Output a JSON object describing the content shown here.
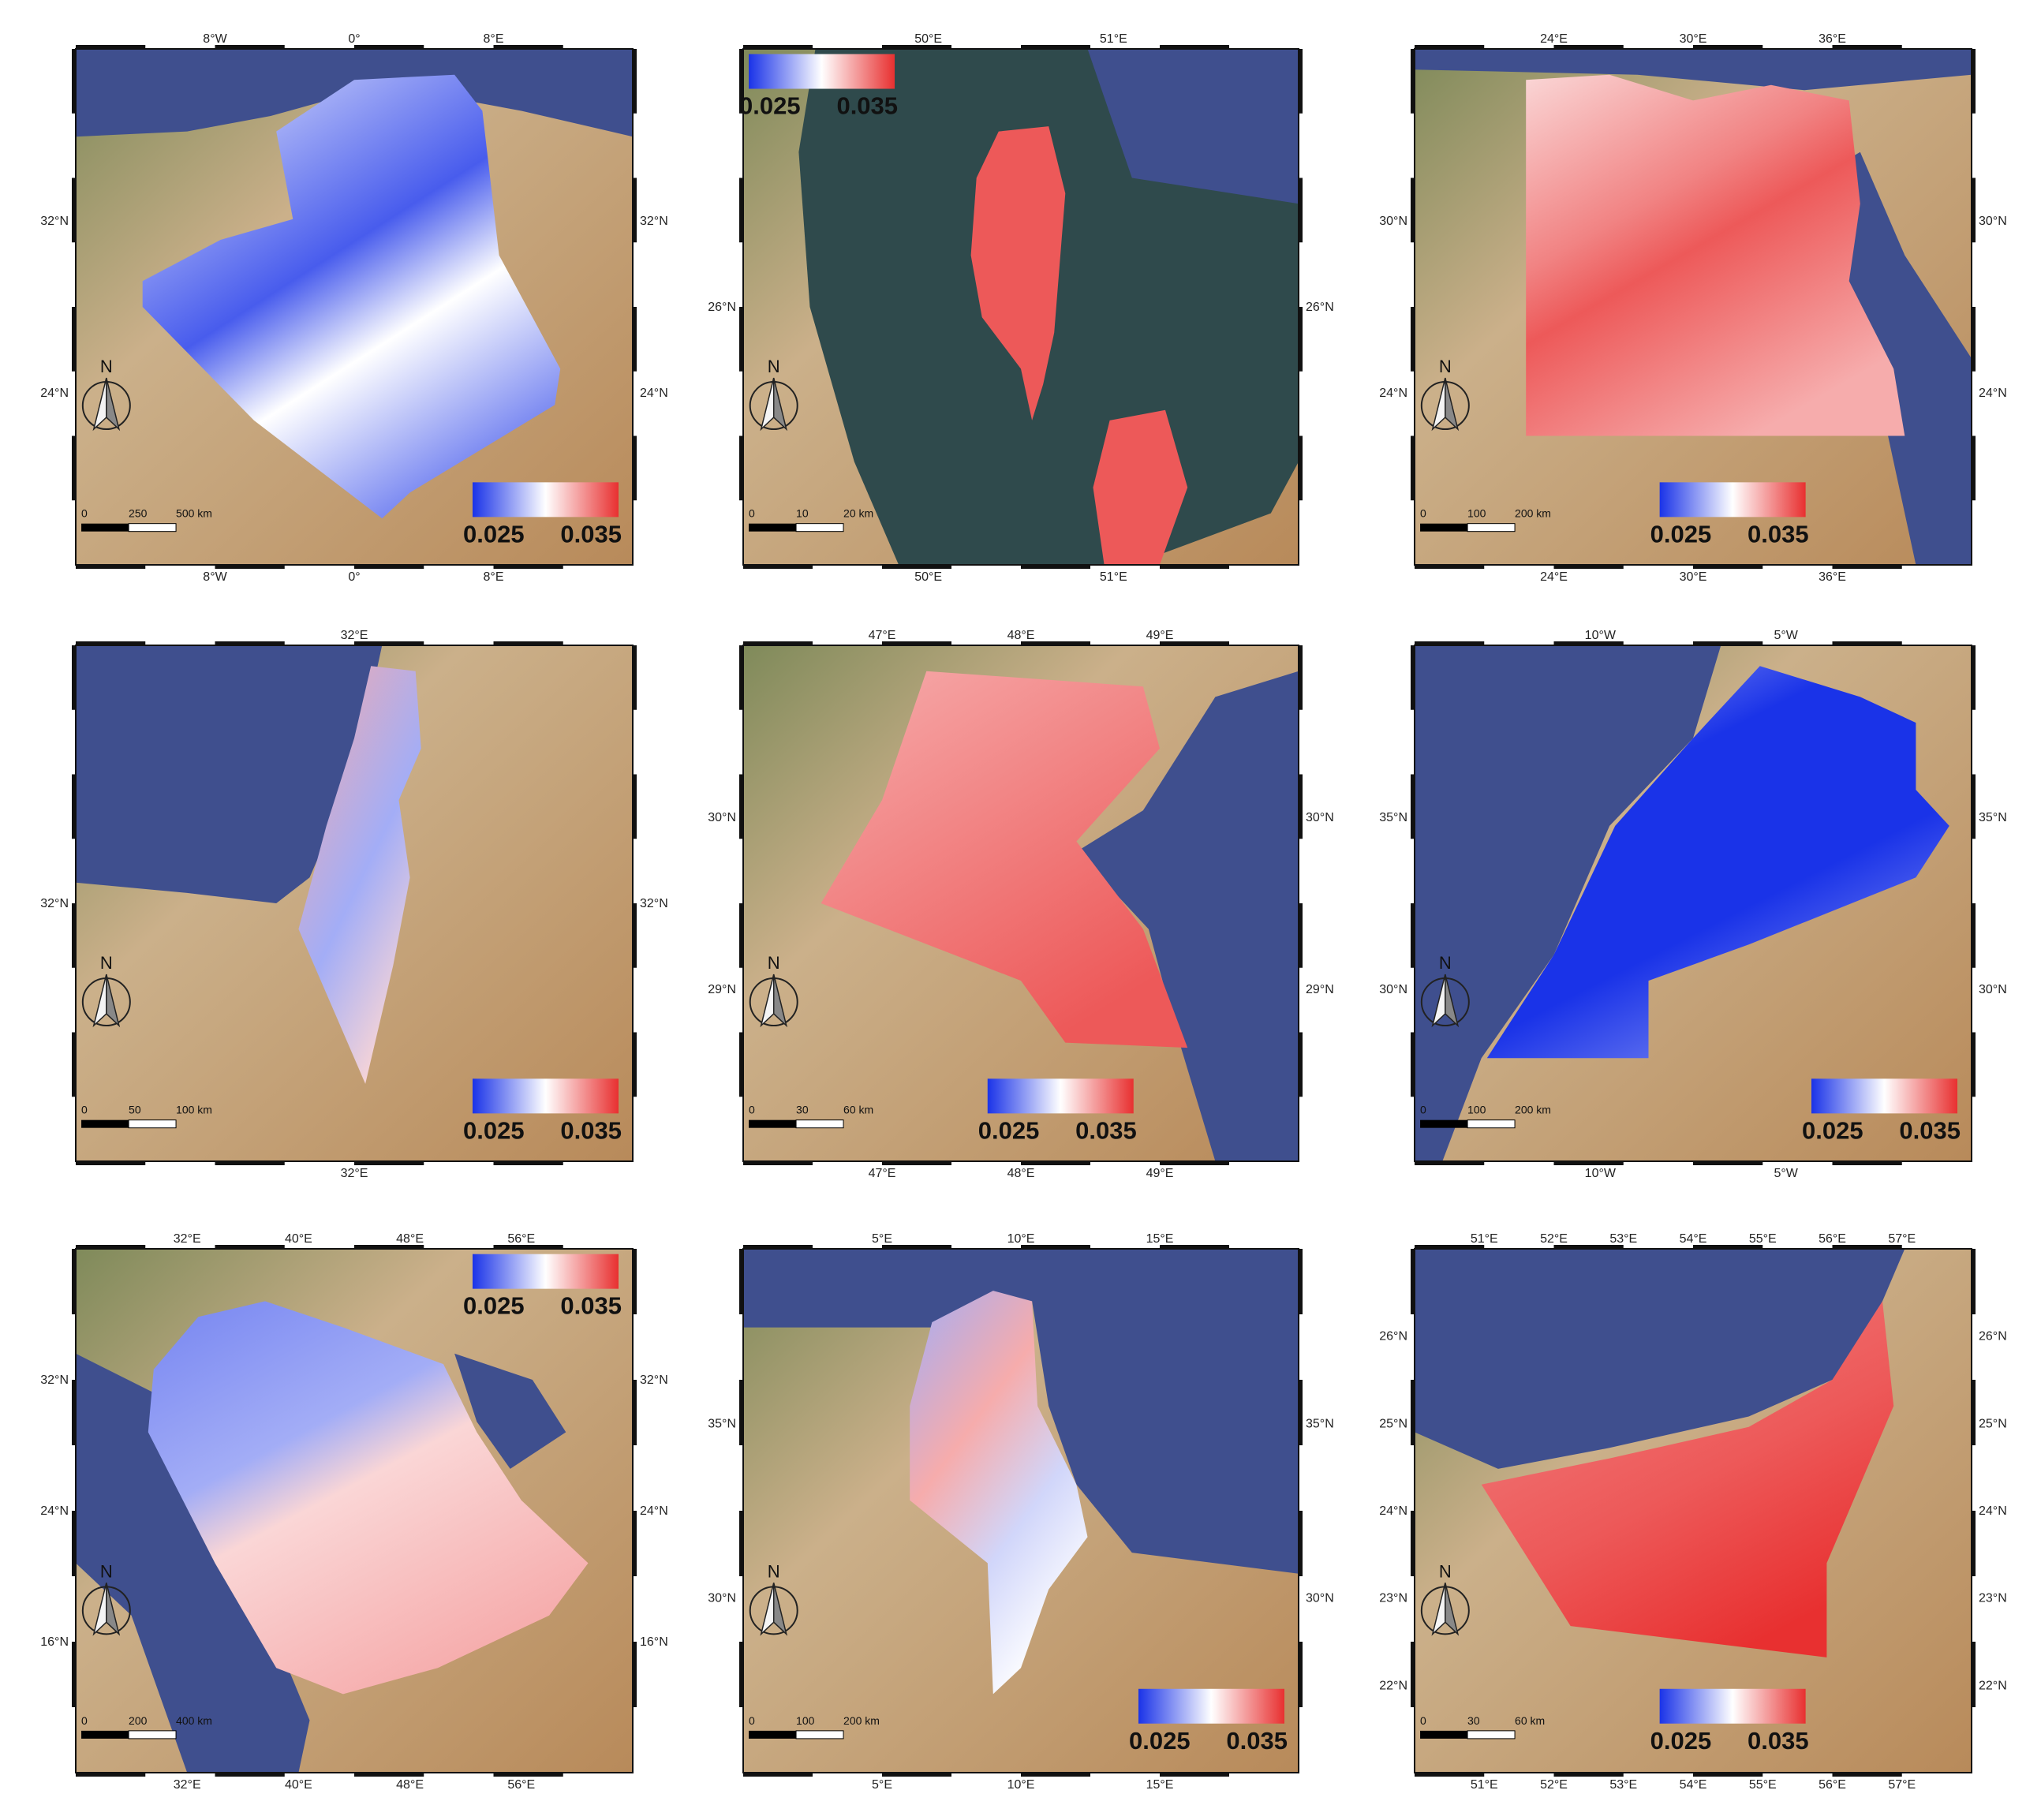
{
  "colorbar": {
    "colors": [
      "#1a33e8",
      "#ffffff",
      "#e83030"
    ]
  },
  "palette": {
    "land": "#cbb08a",
    "land_dark": "#b88a5a",
    "land_green": "#7f8a5a",
    "sea": "#3f4f8e",
    "sea_teal": "#2f4a4c",
    "frame": "#111111"
  },
  "maps": [
    {
      "id": "algeria",
      "sea": [
        [
          0,
          0
        ],
        [
          1,
          0
        ],
        [
          1,
          0.17
        ],
        [
          0.8,
          0.12
        ],
        [
          0.55,
          0.07
        ],
        [
          0.35,
          0.13
        ],
        [
          0.2,
          0.16
        ],
        [
          0,
          0.17
        ]
      ],
      "region": [
        [
          0.36,
          0.16
        ],
        [
          0.5,
          0.06
        ],
        [
          0.68,
          0.05
        ],
        [
          0.73,
          0.12
        ],
        [
          0.76,
          0.4
        ],
        [
          0.87,
          0.62
        ],
        [
          0.86,
          0.69
        ],
        [
          0.6,
          0.86
        ],
        [
          0.55,
          0.91
        ],
        [
          0.32,
          0.72
        ],
        [
          0.12,
          0.5
        ],
        [
          0.12,
          0.45
        ],
        [
          0.26,
          0.37
        ],
        [
          0.39,
          0.33
        ]
      ],
      "value_stops": [
        [
          0.08,
          0.029
        ],
        [
          0.5,
          0.026
        ],
        [
          0.7,
          0.03
        ],
        [
          1,
          0.027
        ]
      ],
      "axis_top": [
        "8°W",
        "0°",
        "8°E"
      ],
      "axis_bottom": [
        "8°W",
        "0°",
        "8°E"
      ],
      "axis_left": [
        "32°N",
        "24°N"
      ],
      "axis_right": [
        "32°N",
        "24°N"
      ],
      "colorbar": {
        "min": "0.025",
        "max": "0.035",
        "pos": "bottom-right"
      },
      "scalebar": [
        "0",
        "250",
        "500 km"
      ]
    },
    {
      "id": "bahrain",
      "sea": [
        [
          0.13,
          0.0
        ],
        [
          1,
          0
        ],
        [
          1,
          0.8
        ],
        [
          0.95,
          0.9
        ],
        [
          0.7,
          1
        ],
        [
          0.28,
          1
        ],
        [
          0.2,
          0.8
        ],
        [
          0.12,
          0.5
        ],
        [
          0.1,
          0.2
        ]
      ],
      "region": [
        [
          0.46,
          0.16
        ],
        [
          0.55,
          0.15
        ],
        [
          0.58,
          0.28
        ],
        [
          0.56,
          0.55
        ],
        [
          0.54,
          0.65
        ],
        [
          0.52,
          0.72
        ],
        [
          0.5,
          0.62
        ],
        [
          0.43,
          0.52
        ],
        [
          0.41,
          0.4
        ],
        [
          0.42,
          0.25
        ]
      ],
      "region2": [
        [
          0.66,
          0.72
        ],
        [
          0.76,
          0.7
        ],
        [
          0.8,
          0.85
        ],
        [
          0.75,
          1
        ],
        [
          0.65,
          1
        ],
        [
          0.63,
          0.85
        ]
      ],
      "value_stops": [
        [
          0,
          0.034
        ],
        [
          1,
          0.034
        ]
      ],
      "axis_top": [
        "50°E",
        "51°E"
      ],
      "axis_bottom": [
        "50°E",
        "51°E"
      ],
      "axis_left": [
        "26°N"
      ],
      "axis_right": [
        "26°N"
      ],
      "colorbar": {
        "min": "0.025",
        "max": "0.035",
        "pos": "top-left"
      },
      "scalebar": [
        "0",
        "10",
        "20 km"
      ]
    },
    {
      "id": "egypt",
      "sea": [
        [
          0,
          0
        ],
        [
          1,
          0
        ],
        [
          1,
          0.05
        ],
        [
          0.7,
          0.08
        ],
        [
          0.4,
          0.05
        ],
        [
          0,
          0.04
        ]
      ],
      "sea_side": [
        [
          0.72,
          0.25
        ],
        [
          0.8,
          0.2
        ],
        [
          0.88,
          0.4
        ],
        [
          1,
          0.6
        ],
        [
          1,
          1
        ],
        [
          0.9,
          1
        ],
        [
          0.82,
          0.6
        ]
      ],
      "region": [
        [
          0.2,
          0.06
        ],
        [
          0.35,
          0.05
        ],
        [
          0.5,
          0.1
        ],
        [
          0.64,
          0.07
        ],
        [
          0.78,
          0.1
        ],
        [
          0.8,
          0.3
        ],
        [
          0.78,
          0.45
        ],
        [
          0.86,
          0.62
        ],
        [
          0.88,
          0.75
        ],
        [
          0.2,
          0.75
        ]
      ],
      "value_stops": [
        [
          0,
          0.031
        ],
        [
          0.4,
          0.033
        ],
        [
          0.55,
          0.034
        ],
        [
          1,
          0.032
        ]
      ],
      "axis_top": [
        "24°E",
        "30°E",
        "36°E"
      ],
      "axis_bottom": [
        "24°E",
        "30°E",
        "36°E"
      ],
      "axis_left": [
        "30°N",
        "24°N"
      ],
      "axis_right": [
        "30°N",
        "24°N"
      ],
      "colorbar": {
        "min": "0.025",
        "max": "0.035",
        "pos": "bottom-center"
      },
      "scalebar": [
        "0",
        "100",
        "200 km"
      ]
    },
    {
      "id": "israel",
      "sea": [
        [
          0,
          0
        ],
        [
          0.55,
          0
        ],
        [
          0.5,
          0.25
        ],
        [
          0.42,
          0.45
        ],
        [
          0.36,
          0.5
        ],
        [
          0.2,
          0.48
        ],
        [
          0,
          0.46
        ]
      ],
      "region": [
        [
          0.53,
          0.04
        ],
        [
          0.61,
          0.05
        ],
        [
          0.62,
          0.2
        ],
        [
          0.58,
          0.3
        ],
        [
          0.6,
          0.45
        ],
        [
          0.57,
          0.62
        ],
        [
          0.52,
          0.85
        ],
        [
          0.48,
          0.75
        ],
        [
          0.4,
          0.55
        ],
        [
          0.45,
          0.35
        ],
        [
          0.5,
          0.18
        ]
      ],
      "value_stops": [
        [
          0,
          0.032
        ],
        [
          0.6,
          0.028
        ],
        [
          1,
          0.031
        ]
      ],
      "axis_top": [
        "32°E"
      ],
      "axis_bottom": [
        "32°E"
      ],
      "axis_left": [
        "32°N"
      ],
      "axis_right": [
        "32°N"
      ],
      "colorbar": {
        "min": "0.025",
        "max": "0.035",
        "pos": "bottom-right"
      },
      "scalebar": [
        "0",
        "50",
        "100 km"
      ]
    },
    {
      "id": "kuwait",
      "sea": [
        [
          0.85,
          0.1
        ],
        [
          1,
          0.05
        ],
        [
          1,
          1
        ],
        [
          0.85,
          1
        ],
        [
          0.78,
          0.75
        ],
        [
          0.73,
          0.55
        ],
        [
          0.6,
          0.4
        ],
        [
          0.72,
          0.32
        ]
      ],
      "region": [
        [
          0.33,
          0.05
        ],
        [
          0.72,
          0.08
        ],
        [
          0.75,
          0.2
        ],
        [
          0.6,
          0.38
        ],
        [
          0.72,
          0.55
        ],
        [
          0.8,
          0.78
        ],
        [
          0.58,
          0.77
        ],
        [
          0.5,
          0.65
        ],
        [
          0.14,
          0.5
        ],
        [
          0.25,
          0.3
        ]
      ],
      "value_stops": [
        [
          0,
          0.032
        ],
        [
          1,
          0.034
        ]
      ],
      "axis_top": [
        "47°E",
        "48°E",
        "49°E"
      ],
      "axis_bottom": [
        "47°E",
        "48°E",
        "49°E"
      ],
      "axis_left": [
        "30°N",
        "29°N"
      ],
      "axis_right": [
        "30°N",
        "29°N"
      ],
      "colorbar": {
        "min": "0.025",
        "max": "0.035",
        "pos": "bottom-center"
      },
      "scalebar": [
        "0",
        "30",
        "60 km"
      ]
    },
    {
      "id": "morocco",
      "sea": [
        [
          0,
          0
        ],
        [
          0.55,
          0
        ],
        [
          0.5,
          0.18
        ],
        [
          0.35,
          0.35
        ],
        [
          0.25,
          0.6
        ],
        [
          0.12,
          0.8
        ],
        [
          0.05,
          1
        ],
        [
          0,
          1
        ]
      ],
      "region": [
        [
          0.62,
          0.04
        ],
        [
          0.8,
          0.1
        ],
        [
          0.9,
          0.15
        ],
        [
          0.9,
          0.28
        ],
        [
          0.96,
          0.35
        ],
        [
          0.9,
          0.45
        ],
        [
          0.6,
          0.58
        ],
        [
          0.42,
          0.65
        ],
        [
          0.42,
          0.8
        ],
        [
          0.13,
          0.8
        ],
        [
          0.25,
          0.6
        ],
        [
          0.36,
          0.35
        ],
        [
          0.5,
          0.18
        ]
      ],
      "value_stops": [
        [
          0,
          0.028
        ],
        [
          0.35,
          0.025
        ],
        [
          0.7,
          0.025
        ],
        [
          1,
          0.027
        ]
      ],
      "axis_top": [
        "10°W",
        "5°W"
      ],
      "axis_bottom": [
        "10°W",
        "5°W"
      ],
      "axis_left": [
        "35°N",
        "30°N"
      ],
      "axis_right": [
        "35°N",
        "30°N"
      ],
      "colorbar": {
        "min": "0.025",
        "max": "0.035",
        "pos": "bottom-right"
      },
      "scalebar": [
        "0",
        "100",
        "200 km"
      ]
    },
    {
      "id": "saudi",
      "sea": [
        [
          0,
          0.2
        ],
        [
          0.15,
          0.28
        ],
        [
          0.25,
          0.5
        ],
        [
          0.35,
          0.72
        ],
        [
          0.42,
          0.9
        ],
        [
          0.4,
          1
        ],
        [
          0.2,
          1
        ],
        [
          0.1,
          0.7
        ],
        [
          0,
          0.6
        ]
      ],
      "sea_side": [
        [
          0.68,
          0.2
        ],
        [
          0.82,
          0.25
        ],
        [
          0.88,
          0.35
        ],
        [
          0.78,
          0.42
        ],
        [
          0.72,
          0.33
        ]
      ],
      "region": [
        [
          0.22,
          0.13
        ],
        [
          0.34,
          0.1
        ],
        [
          0.48,
          0.15
        ],
        [
          0.66,
          0.22
        ],
        [
          0.72,
          0.35
        ],
        [
          0.8,
          0.48
        ],
        [
          0.92,
          0.6
        ],
        [
          0.85,
          0.7
        ],
        [
          0.65,
          0.8
        ],
        [
          0.48,
          0.85
        ],
        [
          0.36,
          0.8
        ],
        [
          0.25,
          0.6
        ],
        [
          0.13,
          0.35
        ],
        [
          0.14,
          0.23
        ]
      ],
      "value_stops": [
        [
          0,
          0.027
        ],
        [
          0.4,
          0.028
        ],
        [
          0.55,
          0.031
        ],
        [
          1,
          0.032
        ]
      ],
      "axis_top": [
        "32°E",
        "40°E",
        "48°E",
        "56°E"
      ],
      "axis_bottom": [
        "32°E",
        "40°E",
        "48°E",
        "56°E"
      ],
      "axis_left": [
        "32°N",
        "24°N",
        "16°N"
      ],
      "axis_right": [
        "32°N",
        "24°N",
        "16°N"
      ],
      "colorbar": {
        "min": "0.025",
        "max": "0.035",
        "pos": "top-right"
      },
      "scalebar": [
        "0",
        "200",
        "400 km"
      ]
    },
    {
      "id": "tunisia",
      "sea": [
        [
          0,
          0
        ],
        [
          1,
          0
        ],
        [
          1,
          0.62
        ],
        [
          0.7,
          0.58
        ],
        [
          0.6,
          0.45
        ],
        [
          0.55,
          0.3
        ],
        [
          0.52,
          0.1
        ],
        [
          0.35,
          0.15
        ],
        [
          0,
          0.15
        ]
      ],
      "region": [
        [
          0.34,
          0.14
        ],
        [
          0.45,
          0.08
        ],
        [
          0.52,
          0.1
        ],
        [
          0.53,
          0.3
        ],
        [
          0.6,
          0.45
        ],
        [
          0.62,
          0.55
        ],
        [
          0.55,
          0.65
        ],
        [
          0.5,
          0.8
        ],
        [
          0.45,
          0.85
        ],
        [
          0.44,
          0.6
        ],
        [
          0.3,
          0.48
        ],
        [
          0.3,
          0.3
        ]
      ],
      "value_stops": [
        [
          0,
          0.028
        ],
        [
          0.4,
          0.032
        ],
        [
          0.7,
          0.029
        ],
        [
          1,
          0.03
        ]
      ],
      "axis_top": [
        "5°E",
        "10°E",
        "15°E"
      ],
      "axis_bottom": [
        "5°E",
        "10°E",
        "15°E"
      ],
      "axis_left": [
        "35°N",
        "30°N"
      ],
      "axis_right": [
        "35°N",
        "30°N"
      ],
      "colorbar": {
        "min": "0.025",
        "max": "0.035",
        "pos": "bottom-right"
      },
      "scalebar": [
        "0",
        "100",
        "200 km"
      ]
    },
    {
      "id": "uae",
      "sea": [
        [
          0,
          0
        ],
        [
          0.88,
          0
        ],
        [
          0.82,
          0.15
        ],
        [
          0.75,
          0.25
        ],
        [
          0.6,
          0.32
        ],
        [
          0.35,
          0.38
        ],
        [
          0.15,
          0.42
        ],
        [
          0,
          0.35
        ]
      ],
      "region": [
        [
          0.12,
          0.45
        ],
        [
          0.35,
          0.4
        ],
        [
          0.6,
          0.34
        ],
        [
          0.75,
          0.25
        ],
        [
          0.84,
          0.1
        ],
        [
          0.86,
          0.3
        ],
        [
          0.8,
          0.45
        ],
        [
          0.74,
          0.6
        ],
        [
          0.74,
          0.78
        ],
        [
          0.28,
          0.72
        ]
      ],
      "value_stops": [
        [
          0,
          0.033
        ],
        [
          0.6,
          0.034
        ],
        [
          1,
          0.035
        ]
      ],
      "axis_top": [
        "51°E",
        "52°E",
        "53°E",
        "54°E",
        "55°E",
        "56°E",
        "57°E"
      ],
      "axis_bottom": [
        "51°E",
        "52°E",
        "53°E",
        "54°E",
        "55°E",
        "56°E",
        "57°E"
      ],
      "axis_left": [
        "26°N",
        "25°N",
        "24°N",
        "23°N",
        "22°N"
      ],
      "axis_right": [
        "26°N",
        "25°N",
        "24°N",
        "23°N",
        "22°N"
      ],
      "colorbar": {
        "min": "0.025",
        "max": "0.035",
        "pos": "bottom-center"
      },
      "scalebar": [
        "0",
        "30",
        "60 km"
      ]
    }
  ]
}
